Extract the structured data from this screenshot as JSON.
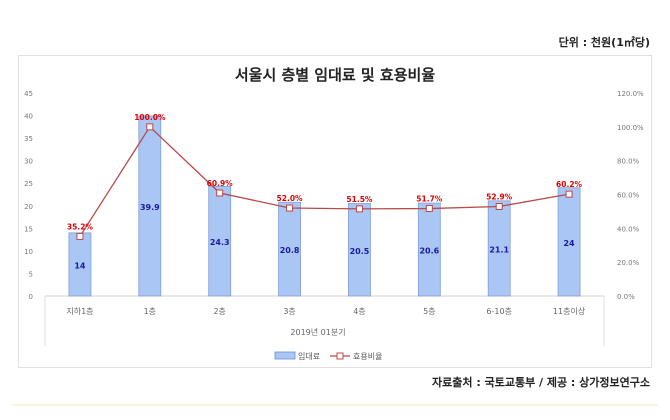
{
  "unit_note": "단위 : 천원(1㎡당)",
  "source_note": "자료출처 : 국토교통부 / 제공 : 상가정보연구소",
  "chart_data": {
    "type": "bar+line",
    "title": "서울시 층별 임대료 및 효용비율",
    "xlabel": "2019년 01분기",
    "categories": [
      "지하1층",
      "1층",
      "2층",
      "3층",
      "4층",
      "5층",
      "6-10층",
      "11층이상"
    ],
    "series": [
      {
        "name": "임대료",
        "type": "bar",
        "axis": "left",
        "values": [
          14,
          39.9,
          24.3,
          20.8,
          20.5,
          20.6,
          21.1,
          24
        ],
        "labels": [
          "14",
          "39.9",
          "24.3",
          "20.8",
          "20.5",
          "20.6",
          "21.1",
          "24"
        ],
        "color": "#a9c6f5"
      },
      {
        "name": "효용비율",
        "type": "line",
        "axis": "right",
        "values": [
          35.2,
          100.0,
          60.9,
          52.0,
          51.5,
          51.7,
          52.9,
          60.2
        ],
        "labels": [
          "35.2%",
          "100.0%",
          "60.9%",
          "52.0%",
          "51.5%",
          "51.7%",
          "52.9%",
          "60.2%"
        ],
        "color": "#b84a4a"
      }
    ],
    "y_left": {
      "range": [
        0,
        45
      ],
      "ticks": [
        "0",
        "5",
        "10",
        "15",
        "20",
        "25",
        "30",
        "35",
        "40",
        "45"
      ]
    },
    "y_right": {
      "range": [
        0,
        120
      ],
      "ticks": [
        "0.0%",
        "20.0%",
        "40.0%",
        "60.0%",
        "80.0%",
        "100.0%",
        "120.0%"
      ]
    },
    "grid": false,
    "legend": "bottom"
  }
}
